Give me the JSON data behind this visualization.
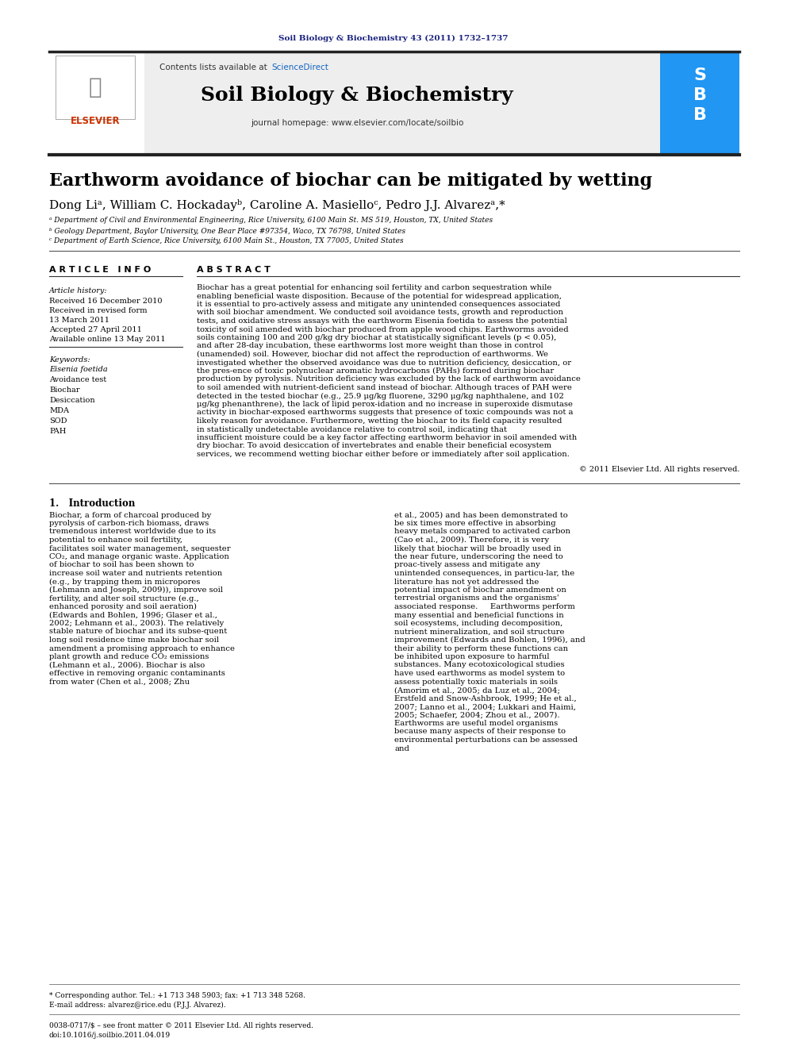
{
  "journal_ref": "Soil Biology & Biochemistry 43 (2011) 1732–1737",
  "journal_name": "Soil Biology & Biochemistry",
  "contents_text": "Contents lists available at ",
  "sciencedirect_text": "ScienceDirect",
  "journal_homepage": "journal homepage: www.elsevier.com/locate/soilbio",
  "paper_title": "Earthworm avoidance of biochar can be mitigated by wetting",
  "authors": "Dong Liᵃ, William C. Hockadayᵇ, Caroline A. Masielloᶜ, Pedro J.J. Alvarezᵃ,*",
  "affil_a": "ᵃ Department of Civil and Environmental Engineering, Rice University, 6100 Main St. MS 519, Houston, TX, United States",
  "affil_b": "ᵇ Geology Department, Baylor University, One Bear Place #97354, Waco, TX 76798, United States",
  "affil_c": "ᶜ Department of Earth Science, Rice University, 6100 Main St., Houston, TX 77005, United States",
  "article_info_header": "A R T I C L E   I N F O",
  "abstract_header": "A B S T R A C T",
  "article_history_label": "Article history:",
  "received_1": "Received 16 December 2010",
  "received_revised": "Received in revised form",
  "revised_date": "13 March 2011",
  "accepted": "Accepted 27 April 2011",
  "available": "Available online 13 May 2011",
  "keywords_label": "Keywords:",
  "keyword_1": "Eisenia foetida",
  "keyword_2": "Avoidance test",
  "keyword_3": "Biochar",
  "keyword_4": "Desiccation",
  "keyword_5": "MDA",
  "keyword_6": "SOD",
  "keyword_7": "PAH",
  "abstract_text": "Biochar has a great potential for enhancing soil fertility and carbon sequestration while enabling beneficial waste disposition. Because of the potential for widespread application, it is essential to pro-actively assess and mitigate any unintended consequences associated with soil biochar amendment. We conducted soil avoidance tests, growth and reproduction tests, and oxidative stress assays with the earthworm Eisenia foetida to assess the potential toxicity of soil amended with biochar produced from apple wood chips. Earthworms avoided soils containing 100 and 200 g/kg dry biochar at statistically significant levels (p < 0.05), and after 28-day incubation, these earthworms lost more weight than those in control (unamended) soil. However, biochar did not affect the reproduction of earthworms. We investigated whether the observed avoidance was due to nutrition deficiency, desiccation, or the pres-ence of toxic polynuclear aromatic hydrocarbons (PAHs) formed during biochar production by pyrolysis. Nutrition deficiency was excluded by the lack of earthworm avoidance to soil amended with nutrient-deficient sand instead of biochar. Although traces of PAH were detected in the tested biochar (e.g., 25.9 μg/kg fluorene, 3290 μg/kg naphthalene, and 102 μg/kg phenanthrene), the lack of lipid perox-idation and no increase in superoxide dismutase activity in biochar-exposed earthworms suggests that presence of toxic compounds was not a likely reason for avoidance. Furthermore, wetting the biochar to its field capacity resulted in statistically undetectable avoidance relative to control soil, indicating that insufficient moisture could be a key factor affecting earthworm behavior in soil amended with dry biochar. To avoid desiccation of invertebrates and enable their beneficial ecosystem services, we recommend wetting biochar either before or immediately after soil application.",
  "copyright_text": "© 2011 Elsevier Ltd. All rights reserved.",
  "intro_header": "1.   Introduction",
  "intro_col1": "Biochar, a form of charcoal produced by pyrolysis of carbon-rich biomass, draws tremendous interest worldwide due to its potential to enhance soil fertility, facilitates soil water management, sequester CO₂, and manage organic waste. Application of biochar to soil has been shown to increase soil water and nutrients retention (e.g., by trapping them in micropores (Lehmann and Joseph, 2009)), improve soil fertility, and alter soil structure (e.g., enhanced porosity and soil aeration) (Edwards and Bohlen, 1996; Glaser et al., 2002; Lehmann et al., 2003). The relatively stable nature of biochar and its subse-quent long soil residence time make biochar soil amendment a promising approach to enhance plant growth and reduce CO₂ emissions (Lehmann et al., 2006). Biochar is also effective in removing organic contaminants from water (Chen et al., 2008; Zhu",
  "intro_col2": "et al., 2005) and has been demonstrated to be six times more effective in absorbing heavy metals compared to activated carbon (Cao et al., 2009). Therefore, it is very likely that biochar will be broadly used in the near future, underscoring the need to proac-tively assess and mitigate any unintended consequences, in particu-lar, the literature has not yet addressed the potential impact of biochar amendment on terrestrial organisms and the organisms' associated response.\n    Earthworms perform many essential and beneficial functions in soil ecosystems, including decomposition, nutrient mineralization, and soil structure improvement (Edwards and Bohlen, 1996), and their ability to perform these functions can be inhibited upon exposure to harmful substances. Many ecotoxicological studies have used earthworms as model system to assess potentially toxic materials in soils (Amorim et al., 2005; da Luz et al., 2004; Erstfeld and Snow-Ashbrook, 1999; He et al., 2007; Lanno et al., 2004; Lukkari and Haimi, 2005; Schaefer, 2004; Zhou et al., 2007). Earthworms are useful model organisms because many aspects of their response to environmental perturbations can be assessed and",
  "footnote_star": "* Corresponding author. Tel.: +1 713 348 5903; fax: +1 713 348 5268.",
  "footnote_email": "E-mail address: alvarez@rice.edu (P.J.J. Alvarez).",
  "footer_issn": "0038-0717/$ – see front matter © 2011 Elsevier Ltd. All rights reserved.",
  "footer_doi": "doi:10.1016/j.soilbio.2011.04.019",
  "bg_color": "#ffffff",
  "header_bg": "#f0f0f0",
  "dark_blue": "#1a237e",
  "link_blue": "#1565c0",
  "orange_red": "#cc3300",
  "black": "#000000",
  "gray_line": "#555555"
}
